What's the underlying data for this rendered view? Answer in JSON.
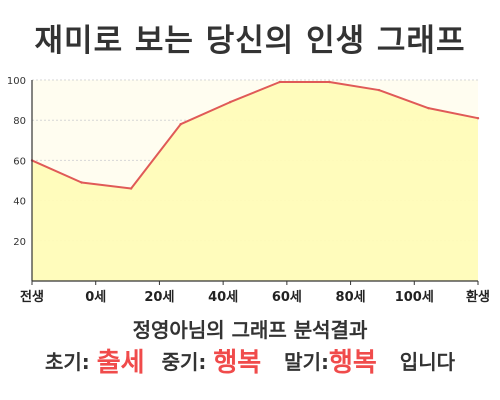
{
  "chart_data": {
    "type": "area",
    "title": "재미로 보는 당신의 인생 그래프",
    "x": [
      0,
      1,
      2,
      3,
      4,
      5,
      6,
      7,
      8,
      9
    ],
    "y": [
      60,
      49,
      46,
      78,
      89,
      99,
      99,
      95,
      86,
      81
    ],
    "tick_labels": [
      "전생",
      "0세",
      "20세",
      "40세",
      "60세",
      "80세",
      "100세",
      "환생"
    ],
    "ylim": [
      0,
      100
    ],
    "yticks": [
      20,
      40,
      60,
      80,
      100
    ],
    "grid": true,
    "legend": "none",
    "colors": {
      "line": "#e05a57",
      "fill": "#fffcb8",
      "plot_bg": "#fffdf0"
    }
  },
  "analysis": {
    "title": "정영아님의 그래프 분석결과",
    "early_label": "초기:",
    "early_value": "출세",
    "middle_label": "중기:",
    "middle_value": "행복",
    "late_label": "말기:",
    "late_value": "행복",
    "ending": "입니다"
  }
}
